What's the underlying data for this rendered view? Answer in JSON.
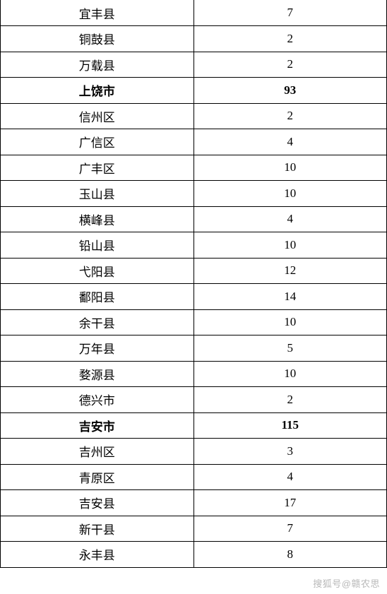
{
  "table": {
    "rows": [
      {
        "name": "宜丰县",
        "value": "7",
        "bold": false
      },
      {
        "name": "铜鼓县",
        "value": "2",
        "bold": false
      },
      {
        "name": "万载县",
        "value": "2",
        "bold": false
      },
      {
        "name": "上饶市",
        "value": "93",
        "bold": true
      },
      {
        "name": "信州区",
        "value": "2",
        "bold": false
      },
      {
        "name": "广信区",
        "value": "4",
        "bold": false
      },
      {
        "name": "广丰区",
        "value": "10",
        "bold": false
      },
      {
        "name": "玉山县",
        "value": "10",
        "bold": false
      },
      {
        "name": "横峰县",
        "value": "4",
        "bold": false
      },
      {
        "name": "铅山县",
        "value": "10",
        "bold": false
      },
      {
        "name": "弋阳县",
        "value": "12",
        "bold": false
      },
      {
        "name": "鄱阳县",
        "value": "14",
        "bold": false
      },
      {
        "name": "余干县",
        "value": "10",
        "bold": false
      },
      {
        "name": "万年县",
        "value": "5",
        "bold": false
      },
      {
        "name": "婺源县",
        "value": "10",
        "bold": false
      },
      {
        "name": "德兴市",
        "value": "2",
        "bold": false
      },
      {
        "name": "吉安市",
        "value": "115",
        "bold": true
      },
      {
        "name": "吉州区",
        "value": "3",
        "bold": false
      },
      {
        "name": "青原区",
        "value": "4",
        "bold": false
      },
      {
        "name": "吉安县",
        "value": "17",
        "bold": false
      },
      {
        "name": "新干县",
        "value": "7",
        "bold": false
      },
      {
        "name": "永丰县",
        "value": "8",
        "bold": false
      }
    ],
    "columns": [
      "name",
      "value"
    ],
    "col_widths": [
      "50%",
      "50%"
    ],
    "border_color": "#000000",
    "font_size": 17,
    "row_height": 36.5,
    "text_color": "#000000",
    "background_color": "#ffffff"
  },
  "watermark": {
    "text": "搜狐号@赣农思",
    "color": "#b8b8b8",
    "font_size": 13
  }
}
